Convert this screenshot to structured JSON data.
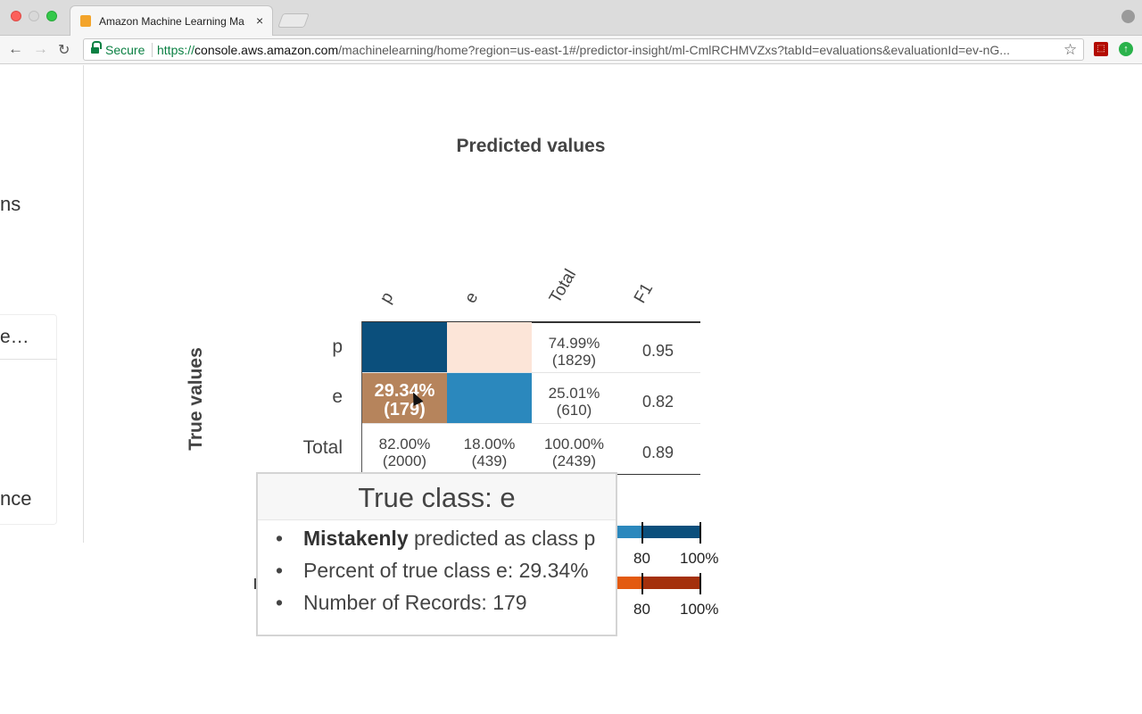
{
  "browser": {
    "tab_title": "Amazon Machine Learning Ma",
    "tab_close": "×",
    "secure_label": "Secure",
    "url_proto": "https://",
    "url_host": "console.aws.amazon.com",
    "url_path": "/machinelearning/home?region=us-east-1#/predictor-insight/ml-CmlRCHMVZxs?tabId=evaluations&evaluationId=ev-nG...",
    "back_icon": "←",
    "forward_icon": "→",
    "reload_icon": "↻",
    "star_icon": "☆"
  },
  "sidebar": {
    "fragments": [
      "ns",
      "e…",
      "nce"
    ]
  },
  "chart": {
    "x_title": "Predicted values",
    "y_title": "True values",
    "columns": [
      "p",
      "e",
      "Total",
      "F1"
    ],
    "rows": [
      "p",
      "e",
      "Total"
    ],
    "cells": {
      "e_p_pct": "29.34%",
      "e_p_count": "(179)"
    },
    "totals_col": [
      {
        "pct": "74.99%",
        "count": "(1829)"
      },
      {
        "pct": "25.01%",
        "count": "(610)"
      },
      {
        "pct": "100.00%",
        "count": "(2439)"
      }
    ],
    "totals_row": [
      {
        "pct": "82.00%",
        "count": "(2000)"
      },
      {
        "pct": "18.00%",
        "count": "(439)"
      }
    ],
    "f1": [
      "0.95",
      "0.82",
      "0.89"
    ],
    "colors": {
      "p_p": "#0b4f7c",
      "p_e": "#fce5d8",
      "e_p": "#b6845c",
      "e_e": "#2b88bd",
      "blue_light": "#2b88bd",
      "blue_dark": "#0b4f7c",
      "orange_light": "#e35a10",
      "orange_dark": "#a4300c"
    },
    "legend_ticks": [
      "80",
      "100%"
    ]
  },
  "chart_data": {
    "type": "heatmap",
    "title": "",
    "xlabel": "Predicted values",
    "ylabel": "True values",
    "x": [
      "p",
      "e"
    ],
    "y": [
      "p",
      "e"
    ],
    "values": [
      [
        null,
        null
      ],
      [
        29.34,
        null
      ]
    ],
    "counts": [
      [
        null,
        null
      ],
      [
        179,
        null
      ]
    ],
    "row_totals_pct": [
      74.99,
      25.01,
      100.0
    ],
    "row_totals_count": [
      1829,
      610,
      2439
    ],
    "col_totals_pct": [
      82.0,
      18.0
    ],
    "col_totals_count": [
      2000,
      439
    ],
    "f1": [
      0.95,
      0.82,
      0.89
    ]
  },
  "tooltip": {
    "title": "True class: e",
    "bullet": "•",
    "item1_bold": "Mistakenly",
    "item1_rest": " predicted as class p",
    "item2": "Percent of true class e: 29.34%",
    "item3": "Number of Records: 179"
  }
}
